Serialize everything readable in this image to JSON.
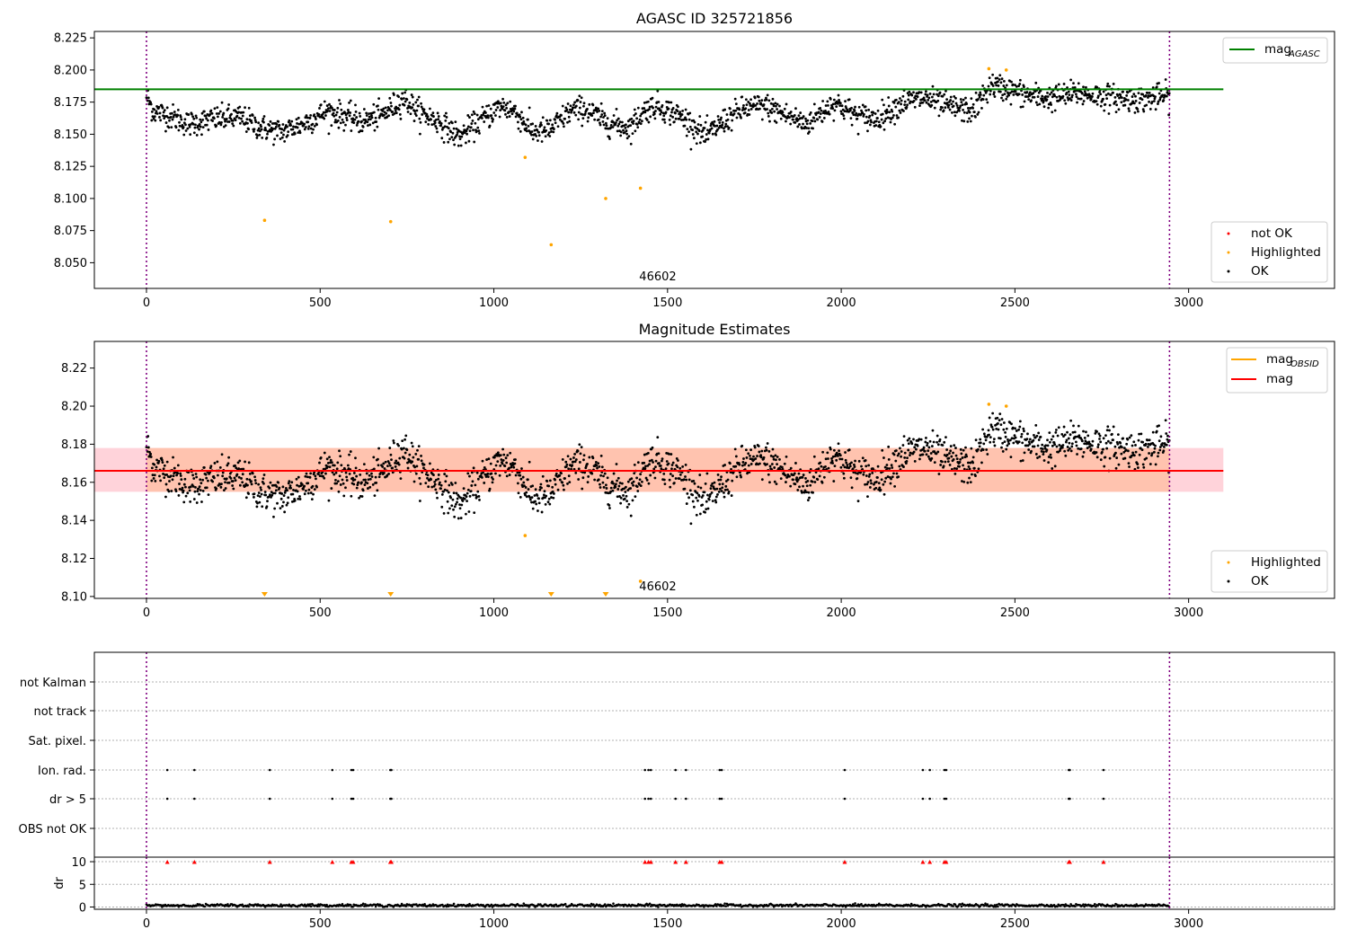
{
  "chart_data": [
    {
      "type": "scatter",
      "title": "AGASC ID 325721856",
      "xlim": [
        -150,
        3420
      ],
      "ylim": [
        8.03,
        8.23
      ],
      "xticks": [
        0,
        500,
        1000,
        1500,
        2000,
        2500,
        3000
      ],
      "yticks": [
        8.05,
        8.075,
        8.1,
        8.125,
        8.15,
        8.175,
        8.2,
        8.225
      ],
      "ytick_labels": [
        "8.050",
        "8.075",
        "8.100",
        "8.125",
        "8.150",
        "8.175",
        "8.200",
        "8.225"
      ],
      "hline": {
        "name": "mag_AGASC",
        "y": 8.185,
        "x": [
          -150,
          3100
        ],
        "color": "#008000"
      },
      "vlines": [
        0,
        2945
      ],
      "obsid_label": {
        "text": "46602",
        "x": 1472
      },
      "highlighted": [
        [
          340,
          8.083
        ],
        [
          703,
          8.082
        ],
        [
          1090,
          8.132
        ],
        [
          1165,
          8.064
        ],
        [
          1322,
          8.1
        ],
        [
          1422,
          8.108
        ],
        [
          2425,
          8.201
        ],
        [
          2475,
          8.2
        ]
      ],
      "ok_trend": {
        "x": [
          0,
          20,
          60,
          120,
          200,
          270,
          330,
          390,
          450,
          520,
          560,
          620,
          680,
          740,
          780,
          840,
          900,
          960,
          1020,
          1060,
          1110,
          1160,
          1220,
          1260,
          1320,
          1390,
          1440,
          1470,
          1530,
          1560,
          1610,
          1660,
          1720,
          1780,
          1840,
          1900,
          1980,
          2040,
          2100,
          2180,
          2240,
          2300,
          2380,
          2430,
          2480,
          2540,
          2600,
          2680,
          2740,
          2800,
          2860,
          2945
        ],
        "y": [
          8.18,
          8.168,
          8.165,
          8.158,
          8.162,
          8.163,
          8.155,
          8.152,
          8.158,
          8.168,
          8.165,
          8.16,
          8.165,
          8.178,
          8.168,
          8.16,
          8.148,
          8.16,
          8.172,
          8.168,
          8.152,
          8.153,
          8.168,
          8.17,
          8.16,
          8.155,
          8.17,
          8.172,
          8.165,
          8.16,
          8.148,
          8.16,
          8.17,
          8.172,
          8.165,
          8.158,
          8.175,
          8.165,
          8.162,
          8.175,
          8.178,
          8.172,
          8.168,
          8.188,
          8.185,
          8.18,
          8.178,
          8.182,
          8.18,
          8.178,
          8.177,
          8.18
        ],
        "spread": 0.009
      },
      "legend_top": [
        {
          "label": "mag",
          "sub": "AGASC",
          "color": "#008000"
        }
      ],
      "legend_bottom": [
        {
          "label": "not OK",
          "color": "red"
        },
        {
          "label": "Highlighted",
          "color": "orange"
        },
        {
          "label": "OK",
          "color": "black"
        }
      ]
    },
    {
      "type": "scatter",
      "title": "Magnitude Estimates",
      "xlim": [
        -150,
        3420
      ],
      "ylim": [
        8.099,
        8.234
      ],
      "xticks": [
        0,
        500,
        1000,
        1500,
        2000,
        2500,
        3000
      ],
      "yticks": [
        8.1,
        8.12,
        8.14,
        8.16,
        8.18,
        8.2,
        8.22
      ],
      "ytick_labels": [
        "8.10",
        "8.12",
        "8.14",
        "8.16",
        "8.18",
        "8.20",
        "8.22"
      ],
      "mag_line": {
        "name": "mag",
        "y": 8.166,
        "x": [
          -150,
          3100
        ],
        "color": "red"
      },
      "band": {
        "y0": 8.155,
        "y1": 8.178,
        "x": [
          -150,
          3100
        ]
      },
      "vlines": [
        0,
        2945
      ],
      "obsid_label": {
        "text": "46602",
        "x": 1472
      },
      "highlighted": [
        [
          1090,
          8.132
        ],
        [
          1422,
          8.108
        ],
        [
          2425,
          8.201
        ],
        [
          2475,
          8.2
        ]
      ],
      "down_markers": [
        340,
        703,
        1165,
        1322
      ],
      "legend_top": [
        {
          "label": "mag",
          "sub": "OBSID",
          "color": "orange"
        },
        {
          "label": "mag",
          "sub": "",
          "color": "red"
        }
      ],
      "legend_bottom": [
        {
          "label": "Highlighted",
          "color": "orange"
        },
        {
          "label": "OK",
          "color": "black"
        }
      ]
    },
    {
      "type": "scatter",
      "xlim": [
        -150,
        3420
      ],
      "xticks": [
        0,
        500,
        1000,
        1500,
        2000,
        2500,
        3000
      ],
      "flag_rows": [
        "not Kalman",
        "not track",
        "Sat. pixel.",
        "Ion. rad.",
        "dr > 5",
        "OBS not OK"
      ],
      "flag_x": [
        60,
        138,
        355,
        535,
        590,
        595,
        702,
        705,
        1435,
        1445,
        1452,
        1523,
        1553,
        1650,
        1656,
        2010,
        2235,
        2255,
        2297,
        2302,
        2655,
        2658,
        2755
      ],
      "dr_ylabel": "dr",
      "dr_yticks": [
        0,
        5,
        10
      ],
      "dr_ylim": [
        -0.5,
        11
      ],
      "vlines": [
        0,
        2945
      ]
    }
  ]
}
